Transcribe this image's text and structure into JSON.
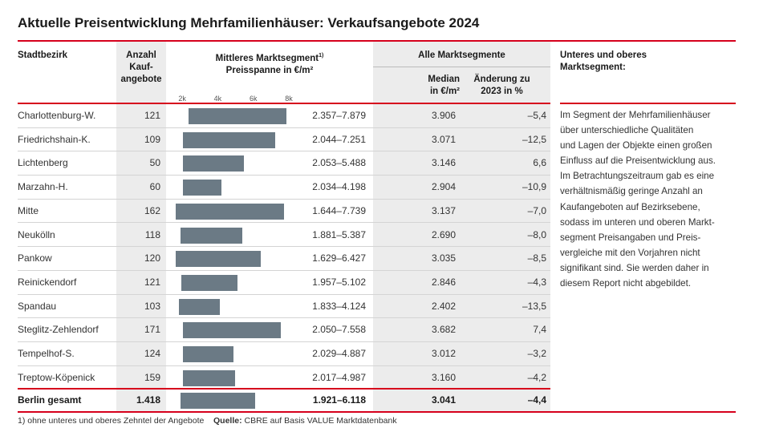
{
  "title": "Aktuelle Preisentwicklung Mehrfamilienhäuser: Verkaufsangebote 2024",
  "headers": {
    "district": "Stadtbezirk",
    "count_lines": [
      "Anzahl",
      "Kauf-",
      "angebote"
    ],
    "segment_line1": "Mittleres Marktsegment",
    "segment_sup": "1)",
    "segment_line2": "Preisspanne in €/m²",
    "all_segments": "Alle Marktsegmente",
    "median_lines": [
      "Median",
      "in €/m²"
    ],
    "change_lines": [
      "Änderung zu",
      "2023 in %"
    ],
    "side_lines": [
      "Unteres und oberes",
      "Marktsegment:"
    ]
  },
  "axis": {
    "ticks": [
      "2k",
      "4k",
      "6k",
      "8k"
    ],
    "values": [
      2000,
      4000,
      6000,
      8000
    ]
  },
  "rows": [
    {
      "district": "Charlottenburg-W.",
      "count": "121",
      "range": "2.357–7.879",
      "low": 2357,
      "high": 7879,
      "median": "3.906",
      "change": "–5,4"
    },
    {
      "district": "Friedrichshain-K.",
      "count": "109",
      "range": "2.044–7.251",
      "low": 2044,
      "high": 7251,
      "median": "3.071",
      "change": "–12,5"
    },
    {
      "district": "Lichtenberg",
      "count": "50",
      "range": "2.053–5.488",
      "low": 2053,
      "high": 5488,
      "median": "3.146",
      "change": "6,6"
    },
    {
      "district": "Marzahn-H.",
      "count": "60",
      "range": "2.034–4.198",
      "low": 2034,
      "high": 4198,
      "median": "2.904",
      "change": "–10,9"
    },
    {
      "district": "Mitte",
      "count": "162",
      "range": "1.644–7.739",
      "low": 1644,
      "high": 7739,
      "median": "3.137",
      "change": "–7,0"
    },
    {
      "district": "Neukölln",
      "count": "118",
      "range": "1.881–5.387",
      "low": 1881,
      "high": 5387,
      "median": "2.690",
      "change": "–8,0"
    },
    {
      "district": "Pankow",
      "count": "120",
      "range": "1.629–6.427",
      "low": 1629,
      "high": 6427,
      "median": "3.035",
      "change": "–8,5"
    },
    {
      "district": "Reinickendorf",
      "count": "121",
      "range": "1.957–5.102",
      "low": 1957,
      "high": 5102,
      "median": "2.846",
      "change": "–4,3"
    },
    {
      "district": "Spandau",
      "count": "103",
      "range": "1.833–4.124",
      "low": 1833,
      "high": 4124,
      "median": "2.402",
      "change": "–13,5"
    },
    {
      "district": "Steglitz-Zehlendorf",
      "count": "171",
      "range": "2.050–7.558",
      "low": 2050,
      "high": 7558,
      "median": "3.682",
      "change": "7,4"
    },
    {
      "district": "Tempelhof-S.",
      "count": "124",
      "range": "2.029–4.887",
      "low": 2029,
      "high": 4887,
      "median": "3.012",
      "change": "–3,2"
    },
    {
      "district": "Treptow-Köpenick",
      "count": "159",
      "range": "2.017–4.987",
      "low": 2017,
      "high": 4987,
      "median": "3.160",
      "change": "–4,2"
    }
  ],
  "total": {
    "district": "Berlin gesamt",
    "count": "1.418",
    "range": "1.921–6.118",
    "low": 1921,
    "high": 6118,
    "median": "3.041",
    "change": "–4,4"
  },
  "side_text_lines": [
    "Im Segment der Mehrfamilienhäuser",
    "über unterschiedliche Qualitäten",
    "und Lagen der Objekte einen großen",
    "Einfluss auf die Preisentwicklung aus.",
    "Im Betrachtungszeitraum gab es eine",
    "verhältnismäßig geringe Anzahl an",
    "Kaufangeboten auf Bezirksebene,",
    "sodass im unteren und oberen Markt-",
    "segment Preisangaben und Preis-",
    "vergleiche mit den Vorjahren nicht",
    "signifikant sind. Sie werden daher in",
    "diesem Report nicht abgebildet."
  ],
  "footnote": {
    "note": "1) ohne unteres und oberes Zehntel der Angebote",
    "source_label": "Quelle:",
    "source_text": "CBRE auf Basis VALUE Marktdatenbank"
  },
  "colors": {
    "accent": "#d6001c",
    "bar": "#6b7a85",
    "shade": "#ececec"
  }
}
